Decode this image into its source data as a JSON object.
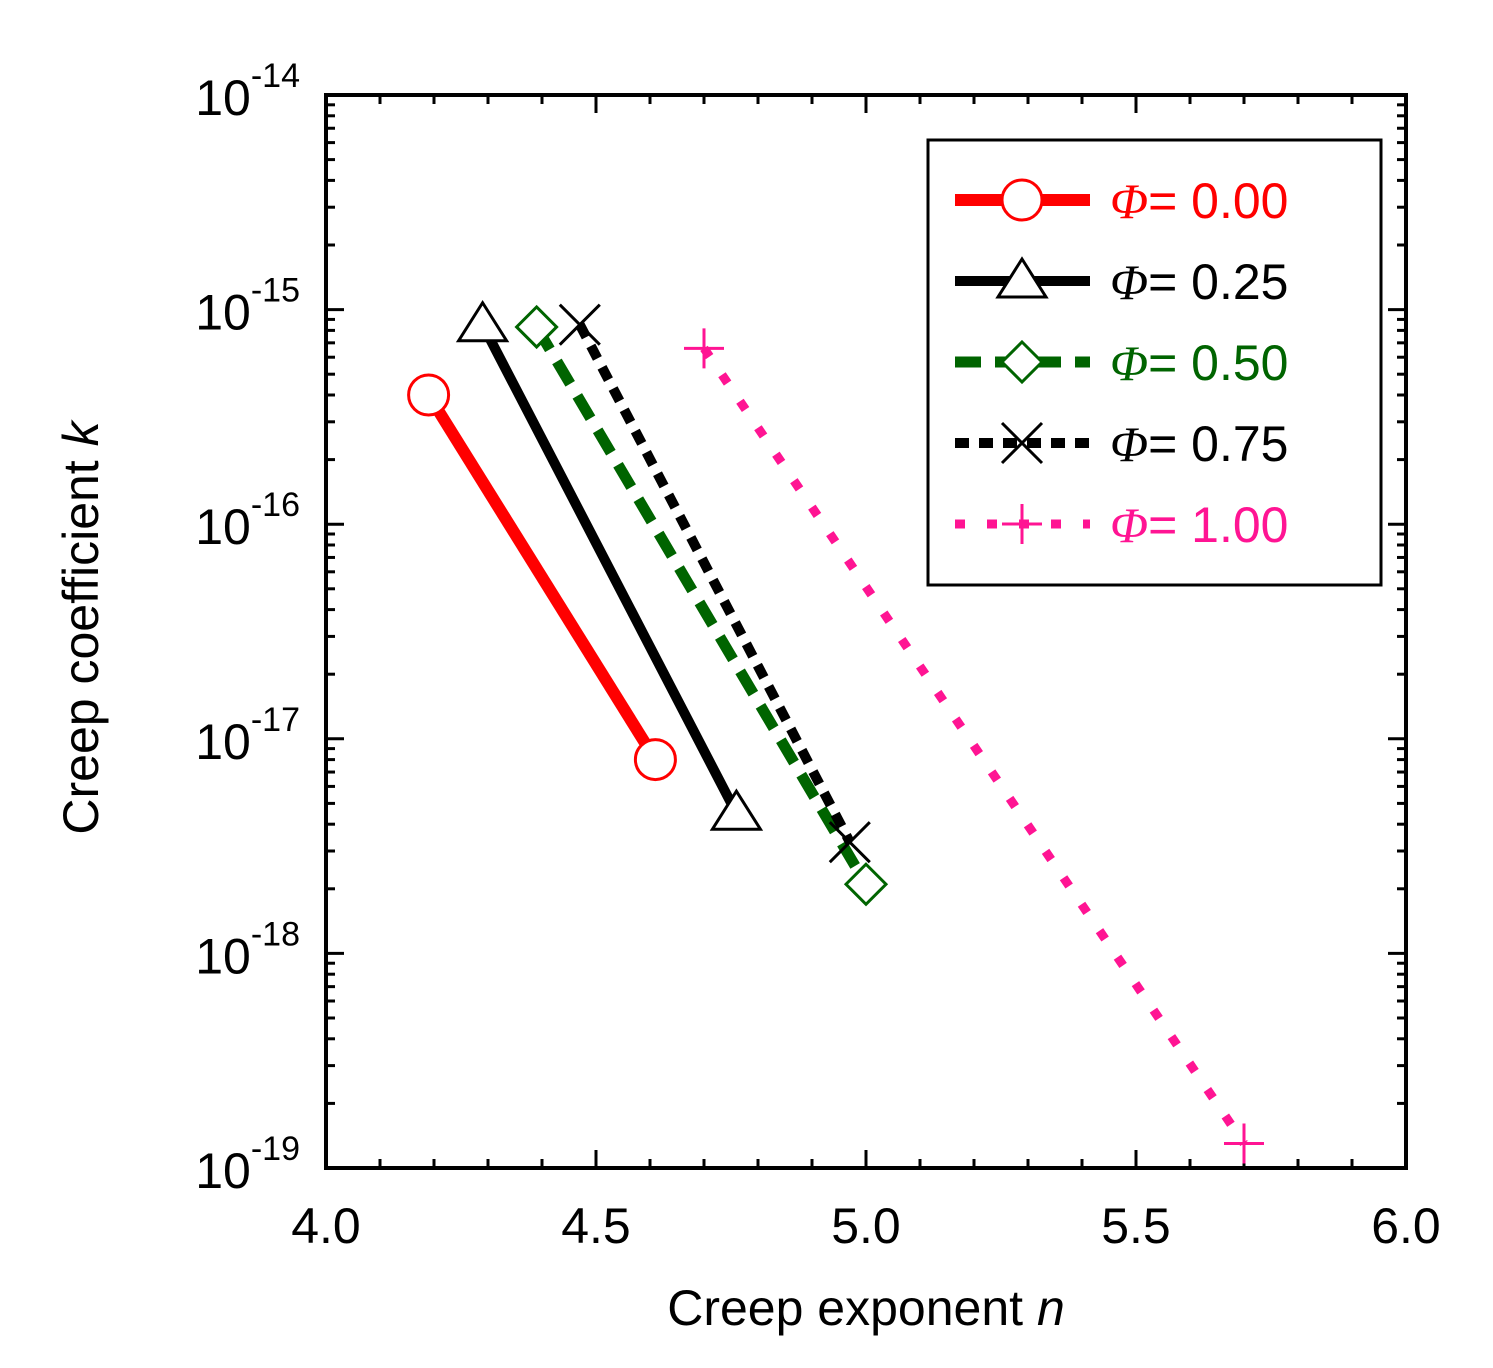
{
  "chart_data": {
    "type": "line",
    "title": "",
    "xlabel": "Creep exponent ",
    "xlabel_var": "n",
    "ylabel": "Creep coefficient ",
    "ylabel_var": "k",
    "xlim": [
      4.0,
      6.0
    ],
    "ylim": [
      1e-19,
      1e-14
    ],
    "yscale": "log",
    "x_ticks": [
      {
        "value": 4.0,
        "label": "4.0"
      },
      {
        "value": 4.5,
        "label": "4.5"
      },
      {
        "value": 5.0,
        "label": "5.0"
      },
      {
        "value": 5.5,
        "label": "5.5"
      },
      {
        "value": 6.0,
        "label": "6.0"
      }
    ],
    "y_ticks": [
      {
        "value": 1e-14,
        "base": "10",
        "exp": "-14"
      },
      {
        "value": 1e-15,
        "base": "10",
        "exp": "-15"
      },
      {
        "value": 1e-16,
        "base": "10",
        "exp": "-16"
      },
      {
        "value": 1e-17,
        "base": "10",
        "exp": "-17"
      },
      {
        "value": 1e-18,
        "base": "10",
        "exp": "-18"
      },
      {
        "value": 1e-19,
        "base": "10",
        "exp": "-19"
      }
    ],
    "legend_position": "top-right",
    "legend_symbol": "Φ",
    "series": [
      {
        "name": "= 0.00",
        "color": "#ff0000",
        "marker": "circle",
        "line": "solid",
        "x": [
          4.19,
          4.61
        ],
        "y": [
          4e-16,
          8e-18
        ]
      },
      {
        "name": "= 0.25",
        "color": "#000000",
        "marker": "triangle",
        "line": "solid",
        "x": [
          4.29,
          4.76
        ],
        "y": [
          8.5e-16,
          4.5e-18
        ]
      },
      {
        "name": "= 0.50",
        "color": "#006400",
        "marker": "diamond",
        "line": "dashed",
        "x": [
          4.39,
          5.0
        ],
        "y": [
          8.3e-16,
          2.1e-18
        ]
      },
      {
        "name": "= 0.75",
        "color": "#000000",
        "marker": "x",
        "line": "dotdash",
        "x": [
          4.47,
          4.97
        ],
        "y": [
          8.5e-16,
          3.3e-18
        ]
      },
      {
        "name": "= 1.00",
        "color": "#ff1493",
        "marker": "plus",
        "line": "dotted",
        "x": [
          4.7,
          5.7
        ],
        "y": [
          6.6e-16,
          1.3e-19
        ]
      }
    ]
  }
}
